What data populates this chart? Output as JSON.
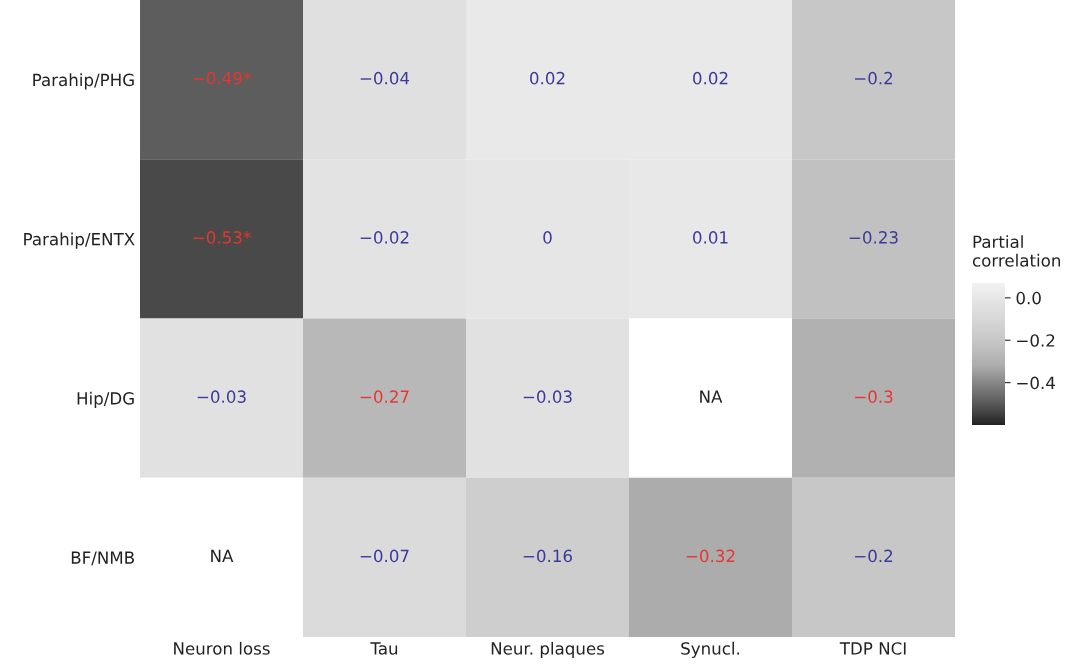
{
  "chart_data": {
    "type": "heatmap",
    "legend_title": "Partial\ncorrelation",
    "categories": [
      "Neuron loss",
      "Tau",
      "Neur. plaques",
      "Synucl.",
      "TDP NCI"
    ],
    "y_categories": [
      "Parahip/PHG",
      "Parahip/ENTX",
      "Hip/DG",
      "BF/NMB"
    ],
    "cells": [
      [
        -0.49,
        -0.04,
        0.02,
        0.02,
        -0.2
      ],
      [
        -0.53,
        -0.02,
        0,
        0.01,
        -0.23
      ],
      [
        -0.03,
        -0.27,
        -0.03,
        null,
        -0.3
      ],
      [
        null,
        -0.07,
        -0.16,
        -0.32,
        -0.2
      ]
    ],
    "cell_labels": [
      [
        "−0.49*",
        "−0.04",
        "0.02",
        "0.02",
        "−0.2"
      ],
      [
        "−0.53*",
        "−0.02",
        "0",
        "0.01",
        "−0.23"
      ],
      [
        "−0.03",
        "−0.27",
        "−0.03",
        "NA",
        "−0.3"
      ],
      [
        "NA",
        "−0.07",
        "−0.16",
        "−0.32",
        "−0.2"
      ]
    ],
    "colors": [
      [
        "#e8352f",
        "#3a3a9a",
        "#3a3a9a",
        "#3a3a9a",
        "#3a3a9a"
      ],
      [
        "#e8352f",
        "#3a3a9a",
        "#3a3a9a",
        "#3a3a9a",
        "#3a3a9a"
      ],
      [
        "#3a3a9a",
        "#e8352f",
        "#3a3a9a",
        "#222222",
        "#e8352f"
      ],
      [
        "#222222",
        "#3a3a9a",
        "#3a3a9a",
        "#e8352f",
        "#3a3a9a"
      ]
    ],
    "clim": [
      -0.6,
      0.07
    ],
    "cticks": [
      {
        "value": 0,
        "label": "0.0"
      },
      {
        "value": -0.2,
        "label": "−0.2"
      },
      {
        "value": -0.4,
        "label": "−0.4"
      }
    ]
  }
}
